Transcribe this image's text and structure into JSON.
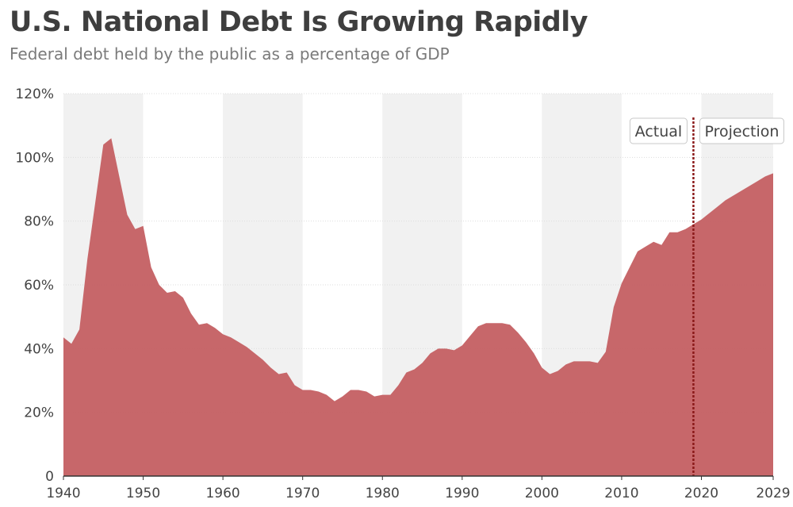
{
  "chart_data": {
    "type": "area",
    "title": "U.S. National Debt Is Growing Rapidly",
    "subtitle": "Federal debt held by the public as a percentage of GDP",
    "xlabel": "",
    "ylabel": "",
    "xlim": [
      1940,
      2029
    ],
    "ylim": [
      0,
      120
    ],
    "x_ticks": [
      1940,
      1950,
      1960,
      1970,
      1980,
      1990,
      2000,
      2010,
      2020,
      2029
    ],
    "y_ticks": [
      0,
      20,
      40,
      60,
      80,
      100,
      120
    ],
    "y_tick_labels": [
      "0",
      "20%",
      "40%",
      "60%",
      "80%",
      "100%",
      "120%"
    ],
    "series": [
      {
        "name": "Federal debt held by the public (% of GDP)",
        "x": [
          1940,
          1941,
          1942,
          1943,
          1944,
          1945,
          1946,
          1947,
          1948,
          1949,
          1950,
          1951,
          1952,
          1953,
          1954,
          1955,
          1956,
          1957,
          1958,
          1959,
          1960,
          1961,
          1962,
          1963,
          1964,
          1965,
          1966,
          1967,
          1968,
          1969,
          1970,
          1971,
          1972,
          1973,
          1974,
          1975,
          1976,
          1977,
          1978,
          1979,
          1980,
          1981,
          1982,
          1983,
          1984,
          1985,
          1986,
          1987,
          1988,
          1989,
          1990,
          1991,
          1992,
          1993,
          1994,
          1995,
          1996,
          1997,
          1998,
          1999,
          2000,
          2001,
          2002,
          2003,
          2004,
          2005,
          2006,
          2007,
          2008,
          2009,
          2010,
          2011,
          2012,
          2013,
          2014,
          2015,
          2016,
          2017,
          2018,
          2019,
          2020,
          2021,
          2022,
          2023,
          2024,
          2025,
          2026,
          2027,
          2028,
          2029
        ],
        "values": [
          43.5,
          41.5,
          46,
          68,
          86,
          104,
          106,
          94,
          82,
          77.5,
          78.5,
          65.5,
          60,
          57.5,
          58,
          56,
          51,
          47.5,
          48,
          46.5,
          44.5,
          43.5,
          42,
          40.5,
          38.5,
          36.5,
          34,
          32,
          32.5,
          28.5,
          27,
          27,
          26.5,
          25.5,
          23.5,
          25,
          27,
          27,
          26.5,
          25,
          25.5,
          25.5,
          28.5,
          32.5,
          33.5,
          35.5,
          38.5,
          40,
          40,
          39.5,
          41,
          44,
          47,
          48,
          48,
          48,
          47.5,
          45,
          42,
          38.5,
          34,
          32,
          33,
          35,
          36,
          36,
          36,
          35.5,
          39,
          53,
          60.5,
          65.5,
          70.5,
          72,
          73.5,
          72.5,
          76.5,
          76.5,
          77.5,
          79,
          80.5,
          82.5,
          84.5,
          86.5,
          88,
          89.5,
          91,
          92.5,
          94,
          95
        ]
      }
    ],
    "split_year": 2019,
    "annotations": [
      "Actual",
      "Projection"
    ],
    "colors": {
      "area": "#c45f62",
      "band": "#f1f1f1",
      "split_line": "#8b1a1a",
      "axis": "#333333"
    }
  }
}
